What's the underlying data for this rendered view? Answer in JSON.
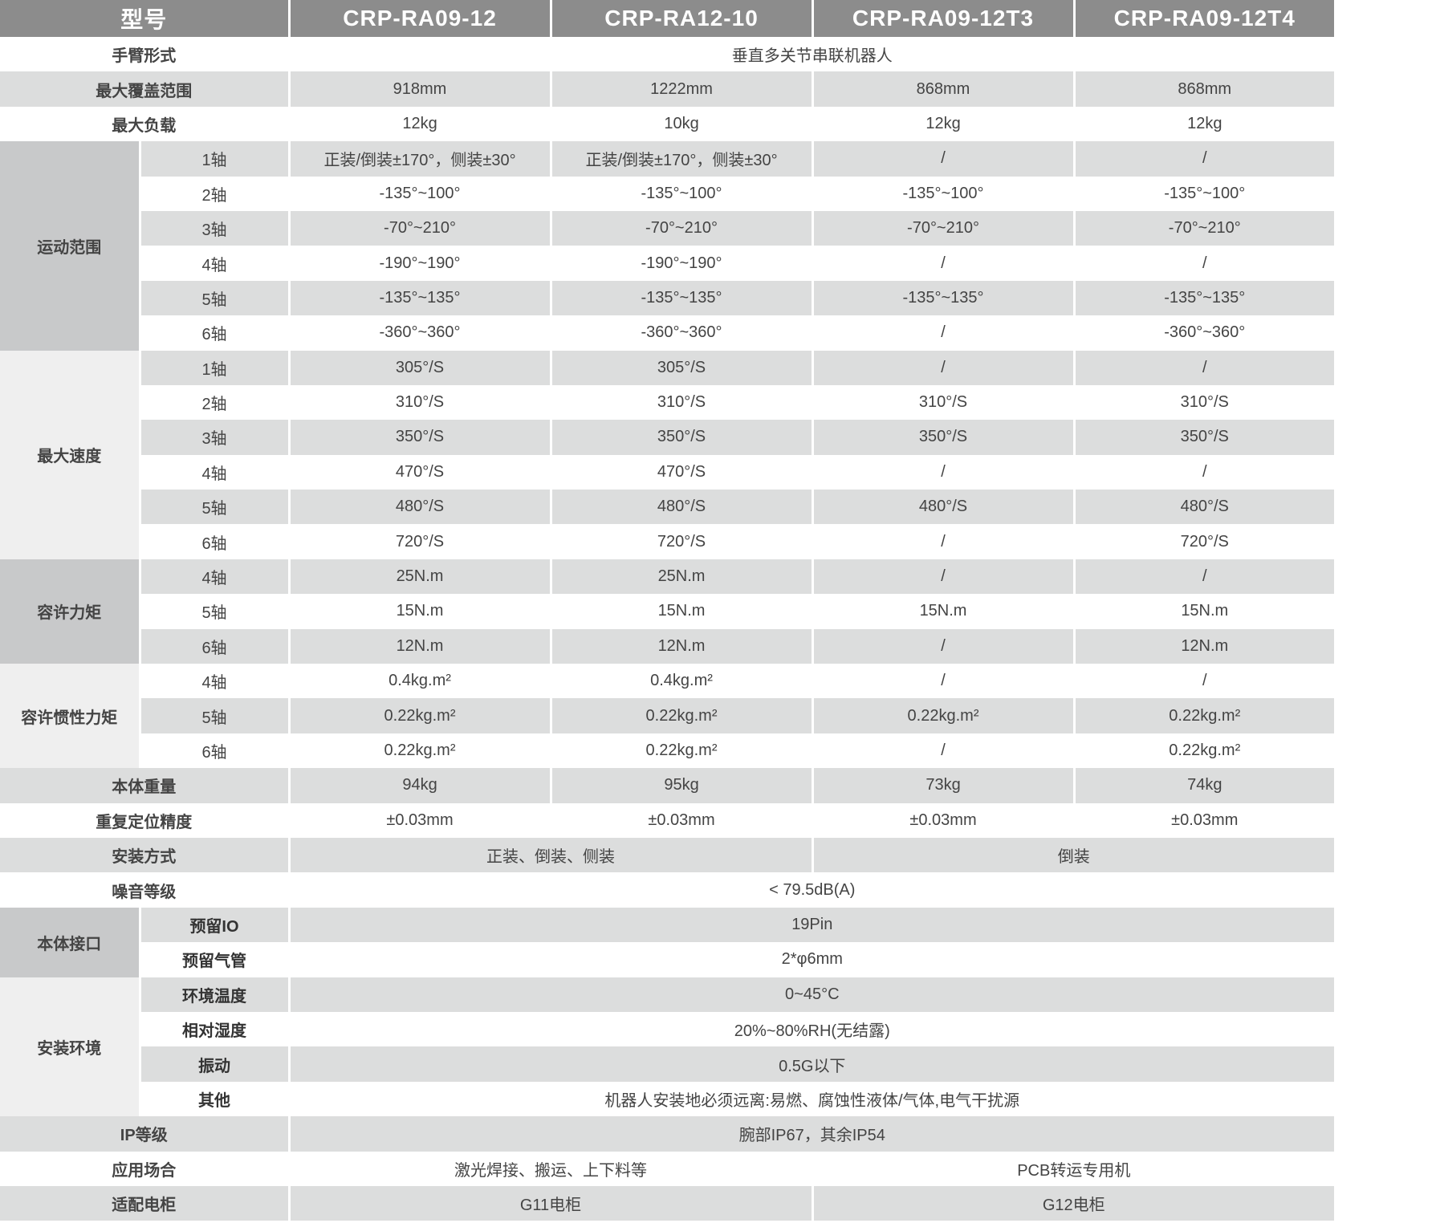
{
  "header": {
    "label": "型号",
    "models": [
      "CRP-RA09-12",
      "CRP-RA12-10",
      "CRP-RA09-12T3",
      "CRP-RA09-12T4"
    ]
  },
  "sections": [
    {
      "label": "手臂形式",
      "values": [
        "垂直多关节串联机器人"
      ]
    },
    {
      "label": "最大覆盖范围",
      "values": [
        "918mm",
        "1222mm",
        "868mm",
        "868mm"
      ]
    },
    {
      "label": "最大负载",
      "values": [
        "12kg",
        "10kg",
        "12kg",
        "12kg"
      ]
    },
    {
      "group": "运动范围",
      "shade": "dark",
      "items": [
        {
          "label": "1轴",
          "values": [
            "正装/倒装±170°，侧装±30°",
            "正装/倒装±170°，侧装±30°",
            "/",
            "/"
          ]
        },
        {
          "label": "2轴",
          "values": [
            "-135°~100°",
            "-135°~100°",
            "-135°~100°",
            "-135°~100°"
          ]
        },
        {
          "label": "3轴",
          "values": [
            "-70°~210°",
            "-70°~210°",
            "-70°~210°",
            "-70°~210°"
          ]
        },
        {
          "label": "4轴",
          "values": [
            "-190°~190°",
            "-190°~190°",
            "/",
            "/"
          ]
        },
        {
          "label": "5轴",
          "values": [
            "-135°~135°",
            "-135°~135°",
            "-135°~135°",
            "-135°~135°"
          ]
        },
        {
          "label": "6轴",
          "values": [
            "-360°~360°",
            "-360°~360°",
            "/",
            "-360°~360°"
          ]
        }
      ]
    },
    {
      "group": "最大速度",
      "shade": "light",
      "items": [
        {
          "label": "1轴",
          "values": [
            "305°/S",
            "305°/S",
            "/",
            "/"
          ]
        },
        {
          "label": "2轴",
          "values": [
            "310°/S",
            "310°/S",
            "310°/S",
            "310°/S"
          ]
        },
        {
          "label": "3轴",
          "values": [
            "350°/S",
            "350°/S",
            "350°/S",
            "350°/S"
          ]
        },
        {
          "label": "4轴",
          "values": [
            "470°/S",
            "470°/S",
            "/",
            "/"
          ]
        },
        {
          "label": "5轴",
          "values": [
            "480°/S",
            "480°/S",
            "480°/S",
            "480°/S"
          ]
        },
        {
          "label": "6轴",
          "values": [
            "720°/S",
            "720°/S",
            "/",
            "720°/S"
          ]
        }
      ]
    },
    {
      "group": "容许力矩",
      "shade": "dark",
      "items": [
        {
          "label": "4轴",
          "values": [
            "25N.m",
            "25N.m",
            "/",
            "/"
          ]
        },
        {
          "label": "5轴",
          "values": [
            "15N.m",
            "15N.m",
            "15N.m",
            "15N.m"
          ]
        },
        {
          "label": "6轴",
          "values": [
            "12N.m",
            "12N.m",
            "/",
            "12N.m"
          ]
        }
      ]
    },
    {
      "group": "容许惯性力矩",
      "shade": "light",
      "items": [
        {
          "label": "4轴",
          "values": [
            "0.4kg.m²",
            "0.4kg.m²",
            "/",
            "/"
          ]
        },
        {
          "label": "5轴",
          "values": [
            "0.22kg.m²",
            "0.22kg.m²",
            "0.22kg.m²",
            "0.22kg.m²"
          ]
        },
        {
          "label": "6轴",
          "values": [
            "0.22kg.m²",
            "0.22kg.m²",
            "/",
            "0.22kg.m²"
          ]
        }
      ]
    },
    {
      "label": "本体重量",
      "values": [
        "94kg",
        "95kg",
        "73kg",
        "74kg"
      ]
    },
    {
      "label": "重复定位精度",
      "values": [
        "±0.03mm",
        "±0.03mm",
        "±0.03mm",
        "±0.03mm"
      ]
    },
    {
      "label": "安装方式",
      "values": [
        "正装、倒装、侧装",
        "倒装"
      ]
    },
    {
      "label": "噪音等级",
      "values": [
        "< 79.5dB(A)"
      ]
    },
    {
      "group": "本体接口",
      "shade": "dark",
      "boldsub": true,
      "items": [
        {
          "label": "预留IO",
          "values": [
            "19Pin"
          ]
        },
        {
          "label": "预留气管",
          "values": [
            "2*φ6mm"
          ]
        }
      ]
    },
    {
      "group": "安装环境",
      "shade": "light",
      "boldsub": true,
      "items": [
        {
          "label": "环境温度",
          "values": [
            "0~45°C"
          ]
        },
        {
          "label": "相对湿度",
          "values": [
            "20%~80%RH(无结露)"
          ]
        },
        {
          "label": "振动",
          "values": [
            "0.5G以下"
          ]
        },
        {
          "label": "其他",
          "values": [
            "机器人安装地必须远离:易燃、腐蚀性液体/气体,电气干扰源"
          ]
        }
      ]
    },
    {
      "label": "IP等级",
      "values": [
        "腕部IP67，其余IP54"
      ]
    },
    {
      "label": "应用场合",
      "values": [
        "激光焊接、搬运、上下料等",
        "PCB转运专用机"
      ]
    },
    {
      "label": "适配电柜",
      "values": [
        "G11电柜",
        "G12电柜"
      ]
    }
  ]
}
